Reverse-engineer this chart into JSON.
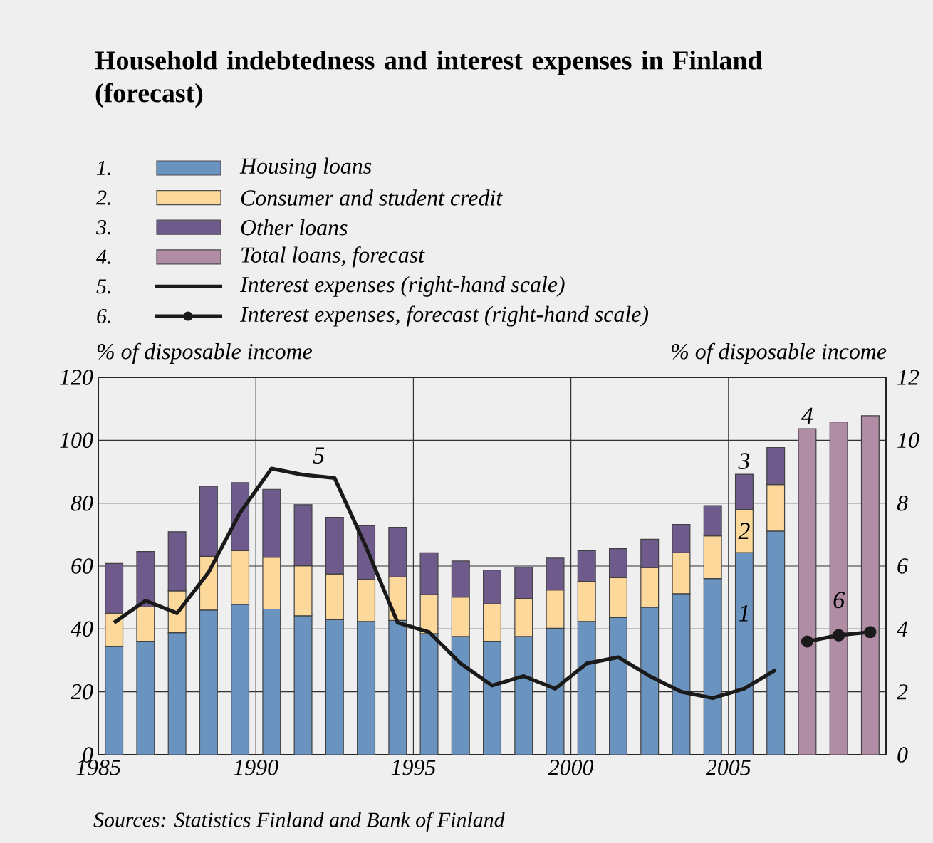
{
  "chart_data": {
    "type": "bar",
    "title": "Household indebtedness and interest expenses in Finland (forecast)",
    "ylabel": "% of disposable income",
    "y2label": "% of disposable income",
    "x": [
      1985.5,
      1986.5,
      1987.5,
      1988.5,
      1989.5,
      1990.5,
      1991.5,
      1992.5,
      1993.5,
      1994.5,
      1995.5,
      1996.5,
      1997.5,
      1998.5,
      1999.5,
      2000.5,
      2001.5,
      2002.5,
      2003.5,
      2004.5,
      2005.5,
      2006.5,
      2007.5,
      2008.5,
      2009.5
    ],
    "stacked": true,
    "series": [
      {
        "name": "Housing loans",
        "color": "#6b93c0",
        "values": [
          34.4,
          36.1,
          38.8,
          46,
          47.8,
          46.3,
          44.2,
          42.9,
          42.4,
          42.7,
          38.5,
          37.6,
          36.1,
          37.6,
          40.2,
          42.4,
          43.6,
          46.9,
          51.2,
          56,
          64.3,
          71.1,
          null,
          null,
          null
        ]
      },
      {
        "name": "Consumer and student credit",
        "color": "#fdd89b",
        "values": [
          10.6,
          10.9,
          13.3,
          17.1,
          17.1,
          16.5,
          15.9,
          14.6,
          13.4,
          13.8,
          12.4,
          12.5,
          11.9,
          12.1,
          12.2,
          12.7,
          12.7,
          12.6,
          13,
          13.6,
          13.7,
          14.8,
          null,
          null,
          null
        ]
      },
      {
        "name": "Other loans",
        "color": "#6f5a8c",
        "values": [
          15.8,
          17.6,
          18.8,
          22.3,
          21.6,
          21.6,
          19.4,
          18,
          17,
          15.8,
          13.3,
          11.5,
          10.7,
          9.9,
          10.1,
          9.8,
          9.2,
          9,
          9,
          9.6,
          11.2,
          11.8,
          null,
          null,
          null
        ]
      },
      {
        "name": "Total loans, forecast",
        "color": "#b08ca5",
        "values": [
          null,
          null,
          null,
          null,
          null,
          null,
          null,
          null,
          null,
          null,
          null,
          null,
          null,
          null,
          null,
          null,
          null,
          null,
          null,
          null,
          null,
          null,
          103.7,
          105.8,
          107.8
        ]
      },
      {
        "name": "Interest expenses (right-hand scale)",
        "type": "line",
        "axis": "y2",
        "color": "#1a1a1a",
        "x": [
          1985.5,
          1986.5,
          1987.5,
          1988.5,
          1989.5,
          1990.5,
          1991.5,
          1992.5,
          1993.5,
          1994.5,
          1995.5,
          1996.5,
          1997.5,
          1998.5,
          1999.5,
          2000.5,
          2001.5,
          2002.5,
          2003.5,
          2004.5,
          2005.5,
          2006.5
        ],
        "values": [
          4.2,
          4.9,
          4.5,
          5.8,
          7.7,
          9.1,
          8.9,
          8.8,
          6.6,
          4.2,
          3.9,
          2.9,
          2.2,
          2.5,
          2.1,
          2.9,
          3.1,
          2.5,
          2,
          1.8,
          2.1,
          2.7
        ]
      },
      {
        "name": "Interest expenses, forecast (right-hand scale)",
        "type": "line",
        "axis": "y2",
        "color": "#1a1a1a",
        "marker": "circle",
        "x": [
          2007.5,
          2008.5,
          2009.5
        ],
        "values": [
          3.6,
          3.8,
          3.9
        ]
      }
    ],
    "xlim": [
      1985,
      2010
    ],
    "xticks": [
      1985,
      1990,
      1995,
      2000,
      2005
    ],
    "ylim": [
      0,
      120
    ],
    "yticks": [
      0,
      20,
      40,
      60,
      80,
      100,
      120
    ],
    "y2lim": [
      0,
      12
    ],
    "y2ticks": [
      0,
      2,
      4,
      6,
      8,
      10,
      12
    ],
    "grid": true,
    "legend": "top left",
    "line_style": "solid",
    "annotations": [
      "1.",
      "2.",
      "3.",
      "4.",
      "5.",
      "6.",
      "1",
      "2",
      "3",
      "4",
      "5",
      "6",
      "Sources: Statistics Finland and Bank of Finland"
    ]
  }
}
